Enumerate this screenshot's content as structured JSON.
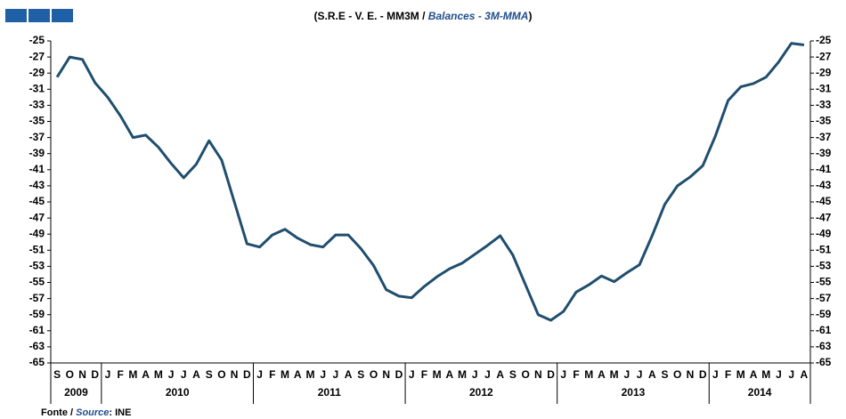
{
  "chart_data": {
    "type": "line",
    "title_parts": [
      "(S.R.E - V. E. - MM3M / ",
      "Balances - 3M-MMA",
      ")"
    ],
    "source_parts": [
      "Fonte / ",
      "Source",
      ": INE"
    ],
    "categories": [
      "S",
      "O",
      "N",
      "D",
      "J",
      "F",
      "M",
      "A",
      "M",
      "J",
      "J",
      "A",
      "S",
      "O",
      "N",
      "D",
      "J",
      "F",
      "M",
      "A",
      "M",
      "J",
      "J",
      "A",
      "S",
      "O",
      "N",
      "D",
      "J",
      "F",
      "M",
      "A",
      "M",
      "J",
      "J",
      "A",
      "S",
      "O",
      "N",
      "D",
      "J",
      "F",
      "M",
      "A",
      "M",
      "J",
      "J",
      "A",
      "S",
      "O",
      "N",
      "D",
      "J",
      "F",
      "M",
      "A",
      "M",
      "J",
      "J",
      "A"
    ],
    "groups": [
      {
        "label": "2009",
        "size": 4
      },
      {
        "label": "2010",
        "size": 12
      },
      {
        "label": "2011",
        "size": 12
      },
      {
        "label": "2012",
        "size": 12
      },
      {
        "label": "2013",
        "size": 12
      },
      {
        "label": "2014",
        "size": 8
      }
    ],
    "series": [
      {
        "name": "Balances",
        "color": "#1f4e6e",
        "values": [
          -29.5,
          -27,
          -27.3,
          -30.2,
          -32,
          -34.3,
          -37,
          -36.7,
          -38.2,
          -40.2,
          -42,
          -40.3,
          -37.4,
          -39.8,
          -45,
          -50.2,
          -50.6,
          -49.1,
          -48.4,
          -49.5,
          -50.3,
          -50.6,
          -49.1,
          -49.1,
          -50.8,
          -52.9,
          -55.9,
          -56.7,
          -56.9,
          -55.5,
          -54.3,
          -53.3,
          -52.6,
          -51.5,
          -50.4,
          -49.2,
          -51.6,
          -55.3,
          -59,
          -59.7,
          -58.6,
          -56.2,
          -55.3,
          -54.2,
          -54.9,
          -53.8,
          -52.8,
          -49.2,
          -45.3,
          -43,
          -41.9,
          -40.5,
          -36.8,
          -32.4,
          -30.7,
          -30.3,
          -29.5,
          -27.6,
          -25.3,
          -25.5
        ]
      }
    ],
    "ylim": [
      -65,
      -25
    ],
    "yticks": [
      -25,
      -27,
      -29,
      -31,
      -33,
      -35,
      -37,
      -39,
      -41,
      -43,
      -45,
      -47,
      -49,
      -51,
      -53,
      -55,
      -57,
      -59,
      -61,
      -63,
      -65
    ],
    "grid": false
  }
}
